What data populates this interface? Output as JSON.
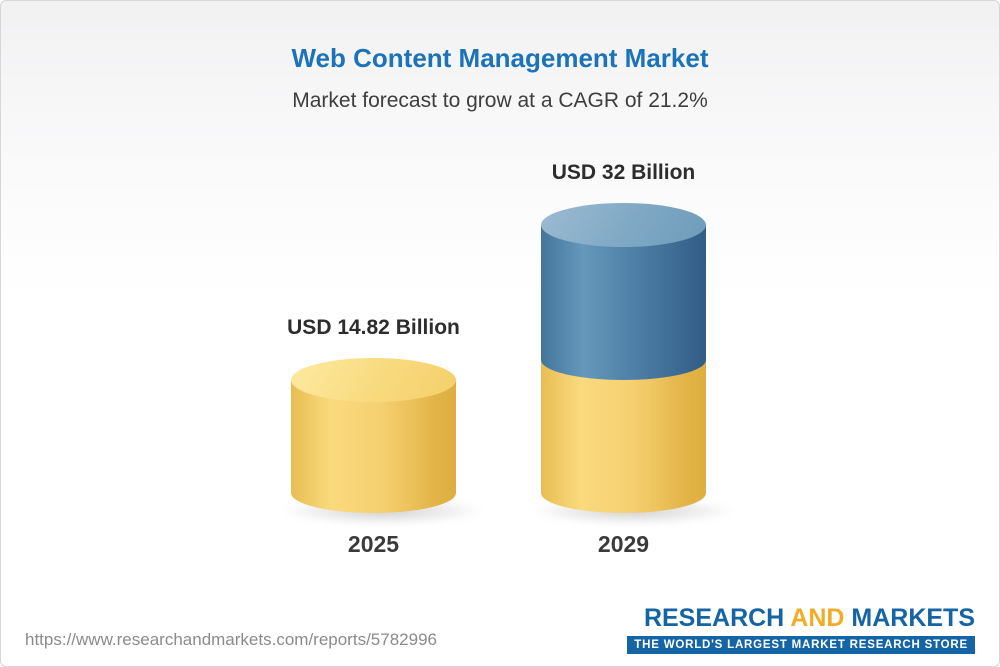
{
  "chart_data": {
    "type": "bar",
    "title": "Web Content Management Market",
    "subtitle": "Market forecast to grow at a CAGR of 21.2%",
    "unit": "USD Billion",
    "cagr_percent": 21.2,
    "categories": [
      "2025",
      "2029"
    ],
    "values": [
      14.82,
      32
    ],
    "value_labels": [
      "USD 14.82 Billion",
      "USD 32 Billion"
    ],
    "stacked_note": "2029 cylinder shows 2025 base in gold plus incremental growth in blue",
    "ylim": [
      0,
      32
    ],
    "grid": false,
    "legend": "none",
    "colors": {
      "title": "#1C73B8",
      "base_segment": "#F6D173",
      "growth_segment": "#4A7BA3",
      "label_text": "#2D2D2D"
    }
  },
  "footer": {
    "url": "https://www.researchandmarkets.com/reports/5782996",
    "brand": {
      "word_research": "RESEARCH",
      "word_and": "AND",
      "word_markets": "MARKETS",
      "tagline": "THE WORLD'S LARGEST MARKET RESEARCH STORE",
      "colors": {
        "blue": "#1565A5",
        "gold": "#F2AC28"
      }
    }
  }
}
